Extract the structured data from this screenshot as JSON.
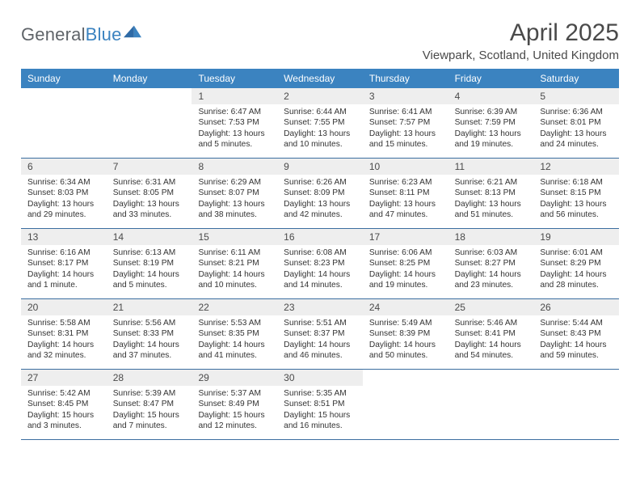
{
  "logo": {
    "text_gray": "General",
    "text_blue": "Blue"
  },
  "title": "April 2025",
  "subtitle": "Viewpark, Scotland, United Kingdom",
  "colors": {
    "header_bg": "#3b83c0",
    "header_text": "#ffffff",
    "daynum_bg": "#eeeeee",
    "rule": "#3b6ea0",
    "body_text": "#333333"
  },
  "days_of_week": [
    "Sunday",
    "Monday",
    "Tuesday",
    "Wednesday",
    "Thursday",
    "Friday",
    "Saturday"
  ],
  "weeks": [
    [
      {
        "n": "",
        "sr": "",
        "ss": "",
        "dl": "",
        "empty": true
      },
      {
        "n": "",
        "sr": "",
        "ss": "",
        "dl": "",
        "empty": true
      },
      {
        "n": "1",
        "sr": "Sunrise: 6:47 AM",
        "ss": "Sunset: 7:53 PM",
        "dl": "Daylight: 13 hours and 5 minutes."
      },
      {
        "n": "2",
        "sr": "Sunrise: 6:44 AM",
        "ss": "Sunset: 7:55 PM",
        "dl": "Daylight: 13 hours and 10 minutes."
      },
      {
        "n": "3",
        "sr": "Sunrise: 6:41 AM",
        "ss": "Sunset: 7:57 PM",
        "dl": "Daylight: 13 hours and 15 minutes."
      },
      {
        "n": "4",
        "sr": "Sunrise: 6:39 AM",
        "ss": "Sunset: 7:59 PM",
        "dl": "Daylight: 13 hours and 19 minutes."
      },
      {
        "n": "5",
        "sr": "Sunrise: 6:36 AM",
        "ss": "Sunset: 8:01 PM",
        "dl": "Daylight: 13 hours and 24 minutes."
      }
    ],
    [
      {
        "n": "6",
        "sr": "Sunrise: 6:34 AM",
        "ss": "Sunset: 8:03 PM",
        "dl": "Daylight: 13 hours and 29 minutes."
      },
      {
        "n": "7",
        "sr": "Sunrise: 6:31 AM",
        "ss": "Sunset: 8:05 PM",
        "dl": "Daylight: 13 hours and 33 minutes."
      },
      {
        "n": "8",
        "sr": "Sunrise: 6:29 AM",
        "ss": "Sunset: 8:07 PM",
        "dl": "Daylight: 13 hours and 38 minutes."
      },
      {
        "n": "9",
        "sr": "Sunrise: 6:26 AM",
        "ss": "Sunset: 8:09 PM",
        "dl": "Daylight: 13 hours and 42 minutes."
      },
      {
        "n": "10",
        "sr": "Sunrise: 6:23 AM",
        "ss": "Sunset: 8:11 PM",
        "dl": "Daylight: 13 hours and 47 minutes."
      },
      {
        "n": "11",
        "sr": "Sunrise: 6:21 AM",
        "ss": "Sunset: 8:13 PM",
        "dl": "Daylight: 13 hours and 51 minutes."
      },
      {
        "n": "12",
        "sr": "Sunrise: 6:18 AM",
        "ss": "Sunset: 8:15 PM",
        "dl": "Daylight: 13 hours and 56 minutes."
      }
    ],
    [
      {
        "n": "13",
        "sr": "Sunrise: 6:16 AM",
        "ss": "Sunset: 8:17 PM",
        "dl": "Daylight: 14 hours and 1 minute."
      },
      {
        "n": "14",
        "sr": "Sunrise: 6:13 AM",
        "ss": "Sunset: 8:19 PM",
        "dl": "Daylight: 14 hours and 5 minutes."
      },
      {
        "n": "15",
        "sr": "Sunrise: 6:11 AM",
        "ss": "Sunset: 8:21 PM",
        "dl": "Daylight: 14 hours and 10 minutes."
      },
      {
        "n": "16",
        "sr": "Sunrise: 6:08 AM",
        "ss": "Sunset: 8:23 PM",
        "dl": "Daylight: 14 hours and 14 minutes."
      },
      {
        "n": "17",
        "sr": "Sunrise: 6:06 AM",
        "ss": "Sunset: 8:25 PM",
        "dl": "Daylight: 14 hours and 19 minutes."
      },
      {
        "n": "18",
        "sr": "Sunrise: 6:03 AM",
        "ss": "Sunset: 8:27 PM",
        "dl": "Daylight: 14 hours and 23 minutes."
      },
      {
        "n": "19",
        "sr": "Sunrise: 6:01 AM",
        "ss": "Sunset: 8:29 PM",
        "dl": "Daylight: 14 hours and 28 minutes."
      }
    ],
    [
      {
        "n": "20",
        "sr": "Sunrise: 5:58 AM",
        "ss": "Sunset: 8:31 PM",
        "dl": "Daylight: 14 hours and 32 minutes."
      },
      {
        "n": "21",
        "sr": "Sunrise: 5:56 AM",
        "ss": "Sunset: 8:33 PM",
        "dl": "Daylight: 14 hours and 37 minutes."
      },
      {
        "n": "22",
        "sr": "Sunrise: 5:53 AM",
        "ss": "Sunset: 8:35 PM",
        "dl": "Daylight: 14 hours and 41 minutes."
      },
      {
        "n": "23",
        "sr": "Sunrise: 5:51 AM",
        "ss": "Sunset: 8:37 PM",
        "dl": "Daylight: 14 hours and 46 minutes."
      },
      {
        "n": "24",
        "sr": "Sunrise: 5:49 AM",
        "ss": "Sunset: 8:39 PM",
        "dl": "Daylight: 14 hours and 50 minutes."
      },
      {
        "n": "25",
        "sr": "Sunrise: 5:46 AM",
        "ss": "Sunset: 8:41 PM",
        "dl": "Daylight: 14 hours and 54 minutes."
      },
      {
        "n": "26",
        "sr": "Sunrise: 5:44 AM",
        "ss": "Sunset: 8:43 PM",
        "dl": "Daylight: 14 hours and 59 minutes."
      }
    ],
    [
      {
        "n": "27",
        "sr": "Sunrise: 5:42 AM",
        "ss": "Sunset: 8:45 PM",
        "dl": "Daylight: 15 hours and 3 minutes."
      },
      {
        "n": "28",
        "sr": "Sunrise: 5:39 AM",
        "ss": "Sunset: 8:47 PM",
        "dl": "Daylight: 15 hours and 7 minutes."
      },
      {
        "n": "29",
        "sr": "Sunrise: 5:37 AM",
        "ss": "Sunset: 8:49 PM",
        "dl": "Daylight: 15 hours and 12 minutes."
      },
      {
        "n": "30",
        "sr": "Sunrise: 5:35 AM",
        "ss": "Sunset: 8:51 PM",
        "dl": "Daylight: 15 hours and 16 minutes."
      },
      {
        "n": "",
        "sr": "",
        "ss": "",
        "dl": "",
        "empty": true
      },
      {
        "n": "",
        "sr": "",
        "ss": "",
        "dl": "",
        "empty": true
      },
      {
        "n": "",
        "sr": "",
        "ss": "",
        "dl": "",
        "empty": true
      }
    ]
  ]
}
